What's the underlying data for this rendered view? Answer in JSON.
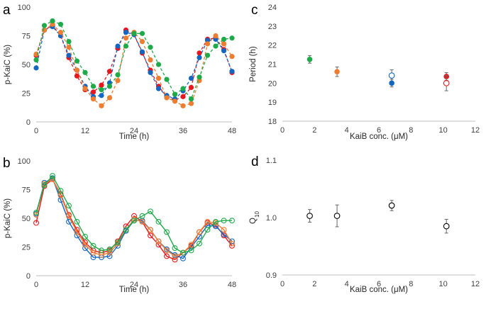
{
  "colors": {
    "red": "#e8161d",
    "blue": "#1566c0",
    "orange": "#ed7d31",
    "green": "#1faa4a",
    "axis": "#bfbfbf",
    "errbar": "#666666"
  },
  "chart_data": [
    {
      "panel": "a",
      "type": "line",
      "style": "dashed-with-filled-markers",
      "xlabel": "Time (h)",
      "ylabel": "p-KaiC (%)",
      "xlim": [
        0,
        48
      ],
      "ylim": [
        0,
        100
      ],
      "xticks": [
        0,
        12,
        24,
        36,
        48
      ],
      "yticks": [
        0,
        25,
        50,
        75,
        100
      ],
      "series": [
        {
          "color": "red",
          "x": [
            0,
            2,
            4,
            6,
            8,
            10,
            12,
            14,
            16,
            18,
            20,
            22,
            24,
            26,
            28,
            30,
            32,
            34,
            36,
            38,
            40,
            42,
            44,
            46,
            48
          ],
          "y": [
            58,
            80,
            84,
            75,
            56,
            40,
            28,
            26,
            32,
            44,
            64,
            80,
            76,
            60,
            45,
            31,
            22,
            19,
            22,
            30,
            60,
            72,
            73,
            63,
            43
          ]
        },
        {
          "color": "blue",
          "x": [
            0,
            2,
            4,
            6,
            8,
            10,
            12,
            14,
            16,
            18,
            20,
            22,
            24,
            26,
            28,
            30,
            32,
            34,
            36,
            38,
            40,
            42,
            44,
            46,
            48
          ],
          "y": [
            47,
            80,
            83,
            75,
            58,
            45,
            31,
            22,
            23,
            34,
            66,
            78,
            76,
            61,
            43,
            29,
            23,
            20,
            27,
            38,
            56,
            71,
            72,
            62,
            44
          ]
        },
        {
          "color": "orange",
          "x": [
            0,
            2,
            4,
            6,
            8,
            10,
            12,
            14,
            16,
            18,
            20,
            22,
            24,
            26,
            28,
            30,
            32,
            34,
            36,
            38,
            40,
            42,
            44,
            46,
            48
          ],
          "y": [
            59,
            80,
            85,
            78,
            65,
            45,
            29,
            20,
            14,
            21,
            36,
            73,
            78,
            70,
            54,
            38,
            21,
            18,
            14,
            16,
            36,
            68,
            75,
            68,
            57
          ]
        },
        {
          "color": "green",
          "x": [
            0,
            2,
            4,
            6,
            8,
            10,
            12,
            14,
            16,
            18,
            20,
            22,
            24,
            26,
            28,
            30,
            32,
            34,
            36,
            38,
            40,
            42,
            44,
            46,
            48
          ],
          "y": [
            54,
            84,
            88,
            85,
            70,
            53,
            43,
            31,
            28,
            31,
            41,
            66,
            77,
            77,
            65,
            50,
            37,
            24,
            29,
            20,
            39,
            58,
            66,
            72,
            73
          ]
        }
      ]
    },
    {
      "panel": "b",
      "type": "line",
      "style": "solid-with-open-markers",
      "xlabel": "Time (h)",
      "ylabel": "p-KaiC (%)",
      "xlim": [
        0,
        48
      ],
      "ylim": [
        0,
        100
      ],
      "xticks": [
        0,
        12,
        24,
        36,
        48
      ],
      "yticks": [
        0,
        25,
        50,
        75,
        100
      ],
      "series": [
        {
          "color": "red",
          "x": [
            0,
            2,
            4,
            6,
            8,
            10,
            12,
            14,
            16,
            18,
            20,
            22,
            24,
            26,
            28,
            30,
            32,
            34,
            36,
            38,
            40,
            42,
            44,
            46,
            48
          ],
          "y": [
            46,
            78,
            84,
            71,
            53,
            40,
            29,
            22,
            20,
            22,
            30,
            43,
            52,
            47,
            35,
            27,
            17,
            14,
            20,
            26,
            38,
            46,
            44,
            35,
            26
          ]
        },
        {
          "color": "blue",
          "x": [
            0,
            2,
            4,
            6,
            8,
            10,
            12,
            14,
            16,
            18,
            20,
            22,
            24,
            26,
            28,
            30,
            32,
            34,
            36,
            38,
            40,
            42,
            44,
            46,
            48
          ],
          "y": [
            54,
            81,
            85,
            66,
            47,
            35,
            24,
            16,
            16,
            17,
            26,
            39,
            48,
            48,
            40,
            30,
            23,
            18,
            15,
            25,
            34,
            44,
            43,
            36,
            30
          ]
        },
        {
          "color": "orange",
          "x": [
            0,
            2,
            4,
            6,
            8,
            10,
            12,
            14,
            16,
            18,
            20,
            22,
            24,
            26,
            28,
            30,
            32,
            34,
            36,
            38,
            40,
            42,
            44,
            46,
            48
          ],
          "y": [
            53,
            80,
            84,
            70,
            52,
            38,
            27,
            20,
            18,
            20,
            28,
            40,
            49,
            47,
            40,
            30,
            22,
            17,
            20,
            27,
            38,
            47,
            46,
            40,
            28
          ]
        },
        {
          "color": "green",
          "x": [
            0,
            2,
            4,
            6,
            8,
            10,
            12,
            14,
            16,
            18,
            20,
            22,
            24,
            26,
            28,
            30,
            32,
            34,
            36,
            38,
            40,
            42,
            44,
            46,
            48
          ],
          "y": [
            55,
            79,
            87,
            74,
            61,
            47,
            34,
            26,
            22,
            23,
            29,
            40,
            48,
            52,
            56,
            47,
            38,
            24,
            20,
            22,
            28,
            40,
            47,
            48,
            48
          ]
        }
      ]
    },
    {
      "panel": "c",
      "type": "scatter",
      "xlabel": "KaiB conc. (μM)",
      "ylabel": "Period (h)",
      "xlim": [
        0,
        12
      ],
      "ylim": [
        18,
        24
      ],
      "xticks": [
        0,
        2,
        4,
        6,
        8,
        10,
        12
      ],
      "yticks": [
        18,
        19,
        20,
        21,
        22,
        23,
        24
      ],
      "points": [
        {
          "x": 1.7,
          "y": 21.25,
          "err": 0.2,
          "color": "green",
          "filled": true
        },
        {
          "x": 3.4,
          "y": 20.6,
          "err": 0.25,
          "color": "orange",
          "filled": true
        },
        {
          "x": 6.8,
          "y": 20.4,
          "err": 0.3,
          "color": "blue",
          "filled": false
        },
        {
          "x": 6.8,
          "y": 20.0,
          "err": 0.2,
          "color": "blue",
          "filled": true
        },
        {
          "x": 10.2,
          "y": 20.35,
          "err": 0.2,
          "color": "red",
          "filled": true
        },
        {
          "x": 10.2,
          "y": 20.0,
          "err": 0.4,
          "color": "red",
          "filled": false
        }
      ]
    },
    {
      "panel": "d",
      "type": "scatter",
      "xlabel": "KaiB conc. (μM)",
      "ylabel": "Q",
      "ylabel_sub": "10",
      "xlim": [
        0,
        12
      ],
      "ylim": [
        0.9,
        1.1
      ],
      "xticks": [
        0,
        2,
        4,
        6,
        8,
        10,
        12
      ],
      "yticks": [
        0.9,
        1.0,
        1.1
      ],
      "ytick_labels": [
        "0.9",
        "1.0",
        "1.1"
      ],
      "points": [
        {
          "x": 1.7,
          "y": 1.003,
          "err": 0.011,
          "color": "black",
          "filled": false
        },
        {
          "x": 3.4,
          "y": 1.003,
          "err": 0.019,
          "color": "black",
          "filled": false
        },
        {
          "x": 6.8,
          "y": 1.021,
          "err": 0.009,
          "color": "black",
          "filled": false
        },
        {
          "x": 10.2,
          "y": 0.985,
          "err": 0.012,
          "color": "black",
          "filled": false
        }
      ]
    }
  ]
}
